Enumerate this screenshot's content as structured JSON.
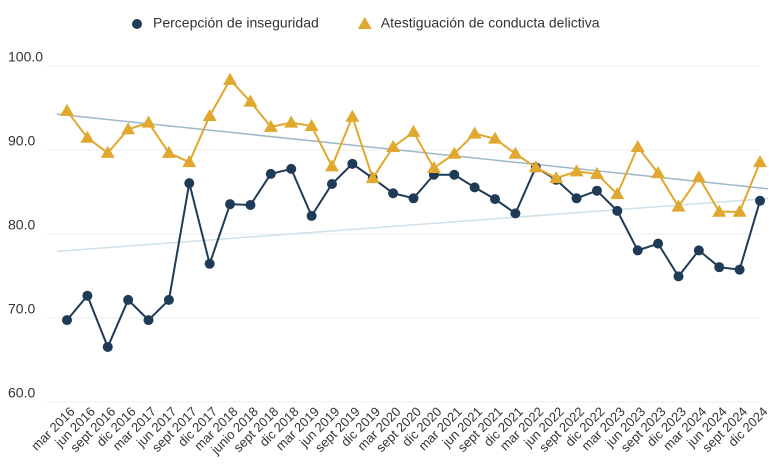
{
  "chart_data": {
    "type": "line",
    "categories": [
      "mar 2016",
      "jun 2016",
      "sept 2016",
      "dic 2016",
      "mar 2017",
      "jun 2017",
      "sept 2017",
      "dic 2017",
      "mar 2018",
      "junio 2018",
      "sept 2018",
      "dic 2018",
      "mar 2019",
      "jun 2019",
      "sept 2019",
      "dic 2019",
      "mar 2020",
      "sept 2020",
      "dic 2020",
      "mar 2021",
      "jun 2021",
      "sept 2021",
      "dic 2021",
      "mar 2022",
      "jun 2022",
      "sept 2022",
      "dic 2022",
      "mar 2023",
      "jun 2023",
      "sept 2023",
      "dic 2023",
      "mar 2024",
      "jun 2024",
      "sept 2024",
      "dic 2024"
    ],
    "series": [
      {
        "name": "Percepción de inseguridad",
        "color": "#1f3b57",
        "marker": "circle",
        "trend_color": "#cfe0e8",
        "values": [
          68.8,
          71.7,
          65.6,
          71.2,
          68.8,
          71.2,
          85.1,
          75.5,
          82.6,
          82.5,
          86.2,
          86.8,
          81.2,
          85.0,
          87.4,
          85.7,
          83.9,
          83.3,
          86.1,
          86.1,
          84.6,
          83.2,
          81.5,
          87.0,
          85.5,
          83.3,
          84.2,
          81.8,
          77.1,
          77.9,
          74.0,
          77.1,
          75.1,
          74.8,
          83.0
        ]
      },
      {
        "name": "Atestiguación de conducta delictiva",
        "color": "#e0a82e",
        "marker": "triangle",
        "trend_color": "#9fb8c6",
        "values": [
          93.7,
          90.5,
          88.7,
          91.5,
          92.3,
          88.7,
          87.6,
          93.1,
          97.4,
          94.8,
          91.8,
          92.3,
          91.9,
          87.1,
          93.0,
          85.7,
          89.4,
          91.2,
          86.9,
          88.6,
          91.0,
          90.4,
          88.6,
          87.0,
          85.7,
          86.5,
          86.2,
          83.8,
          89.4,
          86.3,
          82.3,
          85.8,
          81.7,
          81.7,
          87.6
        ]
      }
    ],
    "ylim": [
      60,
      100
    ],
    "yticks": [
      {
        "value": 60,
        "label": "60.0"
      },
      {
        "value": 70,
        "label": "70.0"
      },
      {
        "value": 80,
        "label": "80.0"
      },
      {
        "value": 90,
        "label": "90.0"
      },
      {
        "value": 100,
        "label": "100.0"
      }
    ],
    "grid": true,
    "trendline": true,
    "legend": "top"
  }
}
